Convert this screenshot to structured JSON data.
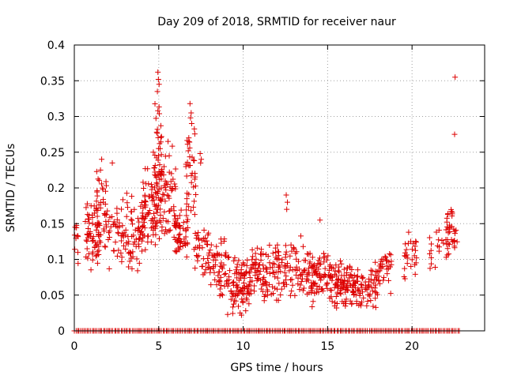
{
  "chart_data": {
    "type": "scatter",
    "title": "Day 209 of 2018, SRMTID for receiver naur",
    "xlabel": "GPS time / hours",
    "ylabel": "SRMTID / TECUs",
    "xlim": [
      0,
      24.3
    ],
    "ylim": [
      0,
      0.4
    ],
    "grid": true,
    "marker": "+",
    "series_color": "#dd0000",
    "xticks": [
      0,
      5,
      10,
      15,
      20
    ],
    "xtick_labels": [
      "0",
      "5",
      "10",
      "15",
      "20"
    ],
    "yticks": [
      0,
      0.05,
      0.1,
      0.15,
      0.2,
      0.25,
      0.3,
      0.35,
      0.4
    ],
    "ytick_labels": [
      "0",
      "0.05",
      "0.1",
      "0.15",
      "0.2",
      "0.25",
      "0.3",
      "0.35",
      "0.4"
    ],
    "cluster_seed": 2018209,
    "clusters": [
      {
        "x_range": [
          0.0,
          0.25
        ],
        "y_range": [
          0.09,
          0.17
        ],
        "count": 10
      },
      {
        "x_range": [
          0.6,
          1.5
        ],
        "y_range": [
          0.07,
          0.19
        ],
        "count": 60
      },
      {
        "x_range": [
          1.3,
          2.0
        ],
        "y_range": [
          0.1,
          0.24
        ],
        "count": 40
      },
      {
        "x_range": [
          2.0,
          3.0
        ],
        "y_range": [
          0.08,
          0.2
        ],
        "count": 40
      },
      {
        "x_range": [
          3.0,
          4.2
        ],
        "y_range": [
          0.07,
          0.2
        ],
        "count": 60
      },
      {
        "x_range": [
          4.0,
          5.0
        ],
        "y_range": [
          0.1,
          0.24
        ],
        "count": 80
      },
      {
        "x_range": [
          4.7,
          5.2
        ],
        "y_range": [
          0.12,
          0.36
        ],
        "count": 35
      },
      {
        "x_range": [
          5.0,
          6.0
        ],
        "y_range": [
          0.1,
          0.28
        ],
        "count": 60
      },
      {
        "x_range": [
          5.9,
          6.7
        ],
        "y_range": [
          0.1,
          0.18
        ],
        "count": 50
      },
      {
        "x_range": [
          6.6,
          7.2
        ],
        "y_range": [
          0.12,
          0.31
        ],
        "count": 40
      },
      {
        "x_range": [
          7.0,
          8.0
        ],
        "y_range": [
          0.07,
          0.16
        ],
        "count": 40
      },
      {
        "x_range": [
          8.0,
          9.0
        ],
        "y_range": [
          0.04,
          0.15
        ],
        "count": 50
      },
      {
        "x_range": [
          9.0,
          10.5
        ],
        "y_range": [
          0.02,
          0.11
        ],
        "count": 100
      },
      {
        "x_range": [
          10.5,
          12.0
        ],
        "y_range": [
          0.04,
          0.13
        ],
        "count": 80
      },
      {
        "x_range": [
          12.0,
          13.5
        ],
        "y_range": [
          0.04,
          0.14
        ],
        "count": 70
      },
      {
        "x_range": [
          13.5,
          15.0
        ],
        "y_range": [
          0.03,
          0.12
        ],
        "count": 90
      },
      {
        "x_range": [
          15.0,
          16.5
        ],
        "y_range": [
          0.03,
          0.1
        ],
        "count": 100
      },
      {
        "x_range": [
          16.5,
          18.0
        ],
        "y_range": [
          0.03,
          0.09
        ],
        "count": 70
      },
      {
        "x_range": [
          17.8,
          18.8
        ],
        "y_range": [
          0.05,
          0.12
        ],
        "count": 40
      },
      {
        "x_range": [
          19.5,
          20.3
        ],
        "y_range": [
          0.05,
          0.14
        ],
        "count": 25
      },
      {
        "x_range": [
          21.0,
          22.1
        ],
        "y_range": [
          0.08,
          0.15
        ],
        "count": 20
      },
      {
        "x_range": [
          22.0,
          22.7
        ],
        "y_range": [
          0.1,
          0.185
        ],
        "count": 35
      }
    ],
    "points": [
      [
        4.95,
        0.362
      ],
      [
        4.98,
        0.352
      ],
      [
        5.02,
        0.345
      ],
      [
        4.92,
        0.335
      ],
      [
        4.95,
        0.308
      ],
      [
        4.88,
        0.278
      ],
      [
        5.05,
        0.262
      ],
      [
        5.08,
        0.255
      ],
      [
        4.68,
        0.25
      ],
      [
        6.85,
        0.318
      ],
      [
        6.92,
        0.305
      ],
      [
        6.88,
        0.298
      ],
      [
        6.95,
        0.29
      ],
      [
        6.78,
        0.27
      ],
      [
        7.45,
        0.248
      ],
      [
        7.52,
        0.24
      ],
      [
        7.48,
        0.235
      ],
      [
        1.62,
        0.24
      ],
      [
        2.25,
        0.235
      ],
      [
        1.55,
        0.225
      ],
      [
        5.55,
        0.265
      ],
      [
        5.62,
        0.245
      ],
      [
        5.75,
        0.22
      ],
      [
        12.55,
        0.19
      ],
      [
        12.62,
        0.18
      ],
      [
        12.58,
        0.17
      ],
      [
        14.55,
        0.155
      ],
      [
        15.02,
        0.105
      ],
      [
        19.8,
        0.138
      ],
      [
        19.92,
        0.125
      ],
      [
        9.82,
        0.025
      ],
      [
        9.9,
        0.022
      ],
      [
        10.15,
        0.028
      ],
      [
        22.55,
        0.355
      ],
      [
        22.52,
        0.275
      ]
    ],
    "zero_points_range": [
      0.0,
      22.8
    ],
    "zero_points_count": 240
  }
}
